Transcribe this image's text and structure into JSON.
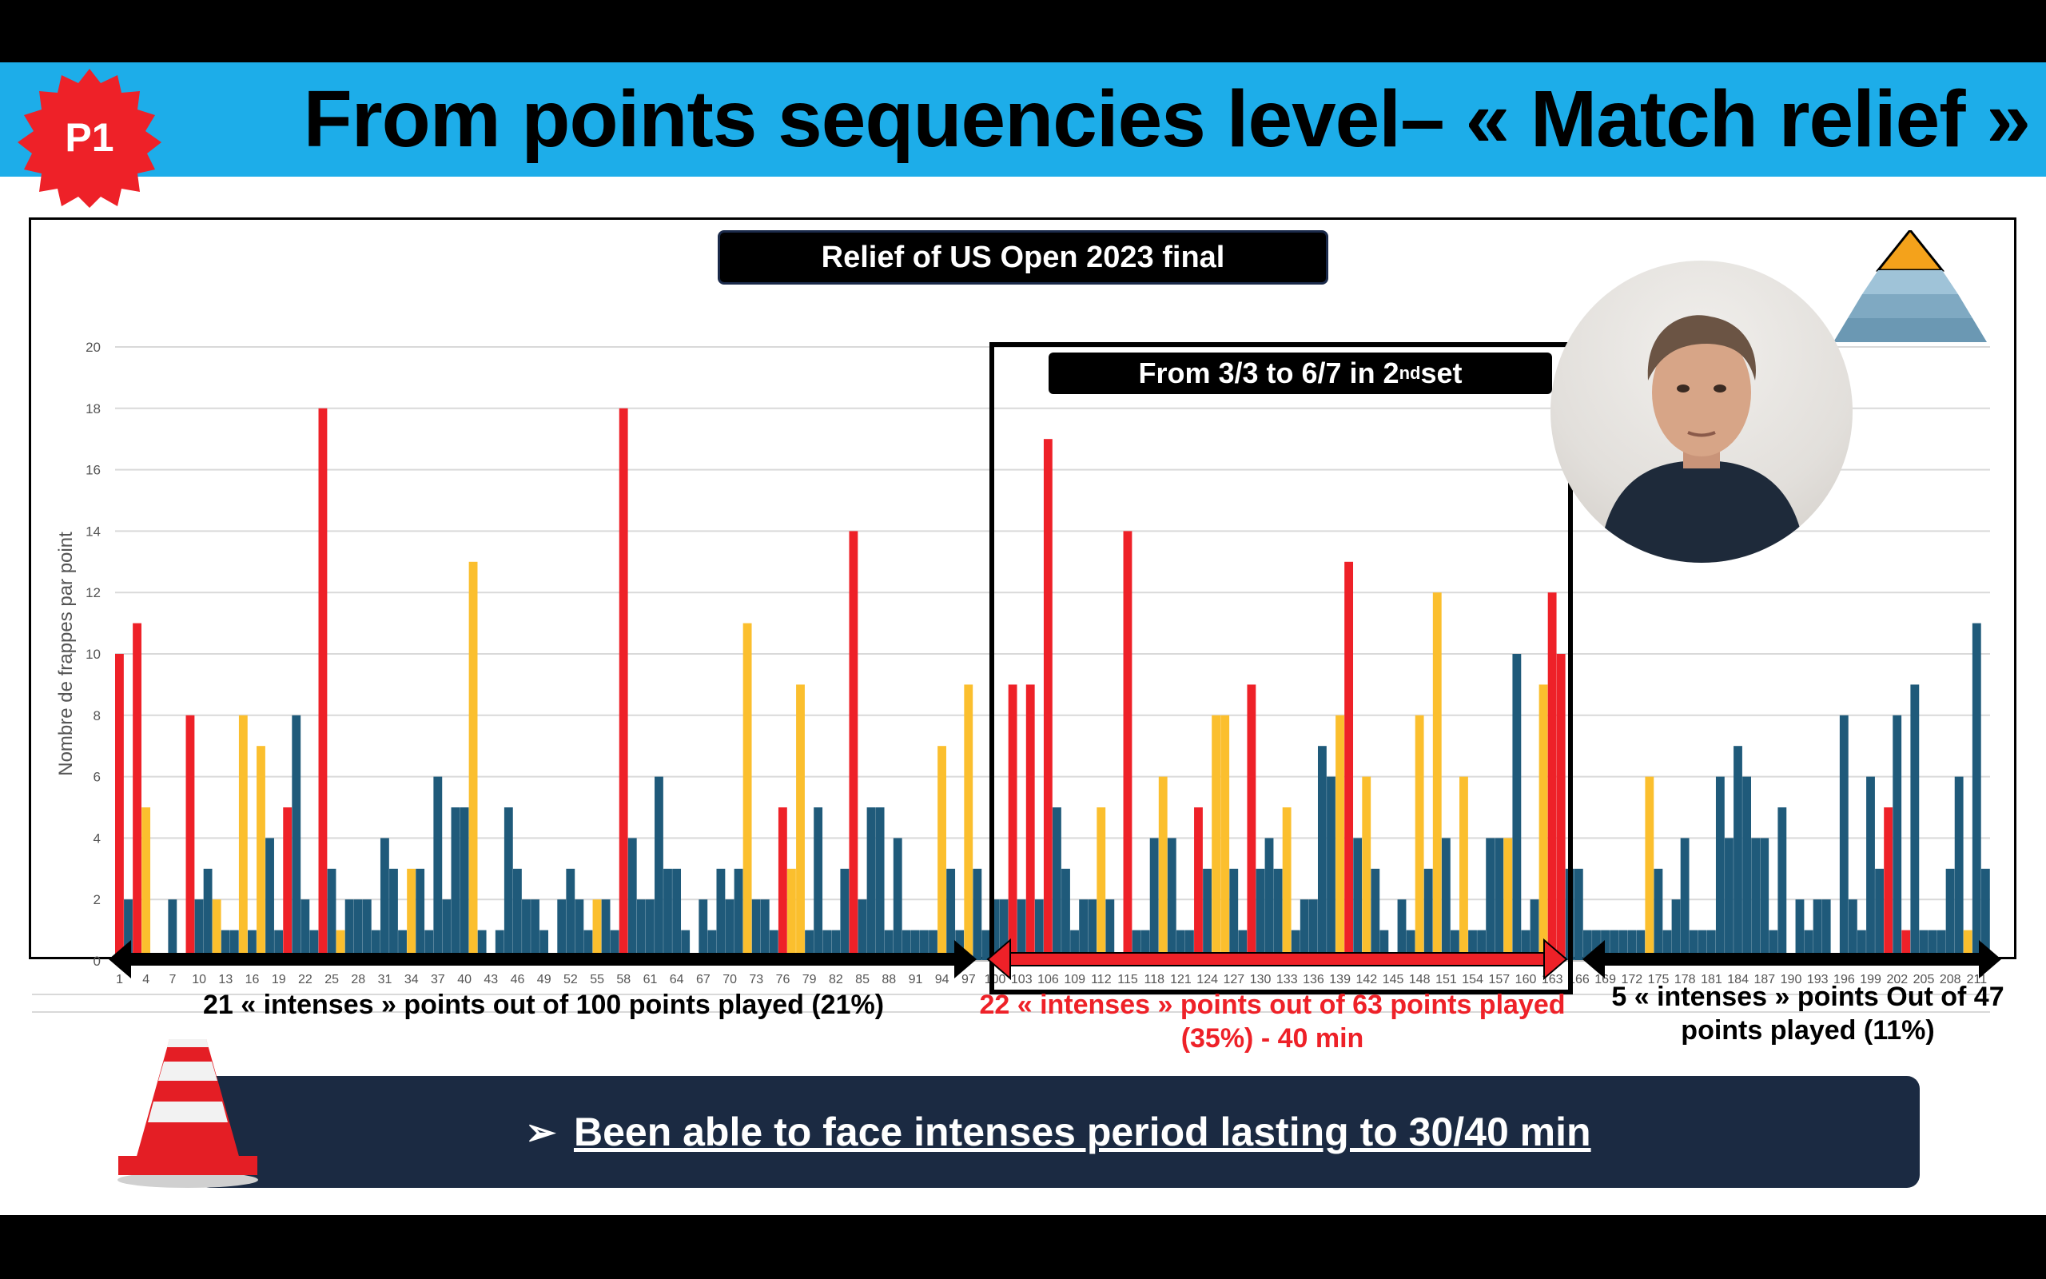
{
  "header": {
    "title": "From points sequencies level– « Match relief »",
    "badge": "P1",
    "colors": {
      "bar": "#1dade9",
      "badge": "#ee2128"
    }
  },
  "chart_title": "Relief of US Open 2023 final",
  "zoom_box": {
    "label_prefix": "From 3/3 to 6/7 in 2",
    "label_sup": "nd",
    "label_suffix": " set"
  },
  "segments": [
    {
      "label": "21 « intenses » points out of 100 points played (21%)",
      "color": "#000000"
    },
    {
      "label": "22 « intenses » points out of 63 points played (35%) - 40 min",
      "color": "#ee2128"
    },
    {
      "label": "5 « intenses » points Out of 47 points played (11%)",
      "color": "#000000"
    }
  ],
  "bottom_message": {
    "arrow": "➢",
    "text": "Been able to face intenses period lasting to 30/40 min"
  },
  "chart_data": {
    "type": "bar",
    "title": "Relief of US Open 2023 final",
    "ylabel": "Nombre de frappes par point",
    "xlabel": "",
    "ylim": [
      0,
      20
    ],
    "yticks": [
      0,
      2,
      4,
      6,
      8,
      10,
      12,
      14,
      16,
      18,
      20
    ],
    "xtick_labels": [
      "1",
      "4",
      "7",
      "10",
      "13",
      "16",
      "19",
      "22",
      "25",
      "28",
      "31",
      "34",
      "37",
      "40",
      "43",
      "46",
      "49",
      "52",
      "55",
      "58",
      "61",
      "64",
      "67",
      "70",
      "73",
      "76",
      "79",
      "82",
      "85",
      "88",
      "91",
      "94",
      "97",
      "100",
      "103",
      "106",
      "109",
      "112",
      "115",
      "118",
      "121",
      "124",
      "127",
      "130",
      "133",
      "136",
      "139",
      "142",
      "145",
      "148",
      "151",
      "154",
      "157",
      "160",
      "163",
      "166",
      "169",
      "172",
      "175",
      "178",
      "181",
      "184",
      "187",
      "190",
      "193",
      "196",
      "199",
      "202",
      "205",
      "208",
      "211"
    ],
    "category_colors": {
      "intense_long": "#ee2128",
      "intense_medium": "#fbbf2e",
      "normal": "#1f5a7a"
    },
    "x": [
      1,
      2,
      3,
      4,
      5,
      6,
      7,
      8,
      9,
      10,
      11,
      12,
      13,
      14,
      15,
      16,
      17,
      18,
      19,
      20,
      21,
      22,
      23,
      24,
      25,
      26,
      27,
      28,
      29,
      30,
      31,
      32,
      33,
      34,
      35,
      36,
      37,
      38,
      39,
      40,
      41,
      42,
      43,
      44,
      45,
      46,
      47,
      48,
      49,
      50,
      51,
      52,
      53,
      54,
      55,
      56,
      57,
      58,
      59,
      60,
      61,
      62,
      63,
      64,
      65,
      66,
      67,
      68,
      69,
      70,
      71,
      72,
      73,
      74,
      75,
      76,
      77,
      78,
      79,
      80,
      81,
      82,
      83,
      84,
      85,
      86,
      87,
      88,
      89,
      90,
      91,
      92,
      93,
      94,
      95,
      96,
      97,
      98,
      99,
      100,
      101,
      102,
      103,
      104,
      105,
      106,
      107,
      108,
      109,
      110,
      111,
      112,
      113,
      114,
      115,
      116,
      117,
      118,
      119,
      120,
      121,
      122,
      123,
      124,
      125,
      126,
      127,
      128,
      129,
      130,
      131,
      132,
      133,
      134,
      135,
      136,
      137,
      138,
      139,
      140,
      141,
      142,
      143,
      144,
      145,
      146,
      147,
      148,
      149,
      150,
      151,
      152,
      153,
      154,
      155,
      156,
      157,
      158,
      159,
      160,
      161,
      162,
      163,
      164,
      165,
      166,
      167,
      168,
      169,
      170,
      171,
      172,
      173,
      174,
      175,
      176,
      177,
      178,
      179,
      180,
      181,
      182,
      183,
      184,
      185,
      186,
      187,
      188,
      189,
      190,
      191,
      192,
      193,
      194,
      195,
      196,
      197,
      198,
      199,
      200,
      201,
      202,
      203,
      204,
      205,
      206,
      207,
      208,
      209,
      210,
      211,
      212
    ],
    "values": [
      10,
      2,
      11,
      5,
      0,
      0,
      2,
      0,
      8,
      2,
      3,
      2,
      1,
      1,
      8,
      1,
      7,
      4,
      1,
      5,
      8,
      2,
      1,
      18,
      3,
      1,
      2,
      2,
      2,
      1,
      4,
      3,
      1,
      3,
      3,
      1,
      6,
      2,
      5,
      5,
      13,
      1,
      0,
      1,
      5,
      3,
      2,
      2,
      1,
      0,
      2,
      3,
      2,
      1,
      2,
      2,
      1,
      18,
      4,
      2,
      2,
      6,
      3,
      3,
      1,
      0,
      2,
      1,
      3,
      2,
      3,
      11,
      2,
      2,
      1,
      5,
      3,
      9,
      1,
      5,
      1,
      1,
      3,
      14,
      2,
      5,
      5,
      1,
      4,
      1,
      1,
      1,
      1,
      7,
      3,
      1,
      9,
      3,
      1,
      2,
      2,
      9,
      2,
      9,
      2,
      17,
      5,
      3,
      1,
      2,
      2,
      5,
      2,
      0,
      14,
      1,
      1,
      4,
      6,
      4,
      1,
      1,
      5,
      3,
      8,
      8,
      3,
      1,
      9,
      3,
      4,
      3,
      5,
      1,
      2,
      2,
      7,
      6,
      8,
      13,
      4,
      6,
      3,
      1,
      0,
      2,
      1,
      8,
      3,
      12,
      4,
      1,
      6,
      1,
      1,
      4,
      4,
      4,
      10,
      1,
      2,
      9,
      12,
      10,
      3,
      3,
      1,
      1,
      1,
      1,
      1,
      1,
      1,
      6,
      3,
      1,
      2,
      4,
      1,
      1,
      1,
      6,
      4,
      7,
      6,
      4,
      4,
      1,
      5,
      0,
      2,
      1,
      2,
      2,
      0,
      8,
      2,
      1,
      6,
      3,
      5,
      8,
      1,
      9,
      1,
      1,
      1,
      3,
      6,
      1,
      11,
      3
    ],
    "intensity": [
      "R",
      "B",
      "R",
      "Y",
      "N",
      "N",
      "B",
      "N",
      "R",
      "B",
      "B",
      "Y",
      "B",
      "B",
      "Y",
      "B",
      "Y",
      "B",
      "B",
      "R",
      "B",
      "B",
      "B",
      "R",
      "B",
      "Y",
      "B",
      "B",
      "B",
      "B",
      "B",
      "B",
      "B",
      "Y",
      "B",
      "B",
      "B",
      "B",
      "B",
      "B",
      "Y",
      "B",
      "N",
      "B",
      "B",
      "B",
      "B",
      "B",
      "B",
      "N",
      "B",
      "B",
      "B",
      "B",
      "Y",
      "B",
      "B",
      "R",
      "B",
      "B",
      "B",
      "B",
      "B",
      "B",
      "B",
      "N",
      "B",
      "B",
      "B",
      "B",
      "B",
      "Y",
      "B",
      "B",
      "B",
      "R",
      "Y",
      "Y",
      "B",
      "B",
      "B",
      "B",
      "B",
      "R",
      "B",
      "B",
      "B",
      "B",
      "B",
      "B",
      "B",
      "B",
      "B",
      "Y",
      "B",
      "B",
      "Y",
      "B",
      "B",
      "B",
      "B",
      "R",
      "B",
      "R",
      "B",
      "R",
      "B",
      "B",
      "B",
      "B",
      "B",
      "Y",
      "B",
      "N",
      "R",
      "B",
      "B",
      "B",
      "Y",
      "B",
      "B",
      "B",
      "R",
      "B",
      "Y",
      "Y",
      "B",
      "B",
      "R",
      "B",
      "B",
      "B",
      "Y",
      "B",
      "B",
      "B",
      "B",
      "B",
      "Y",
      "R",
      "B",
      "Y",
      "B",
      "B",
      "N",
      "B",
      "B",
      "Y",
      "B",
      "Y",
      "B",
      "B",
      "Y",
      "B",
      "B",
      "B",
      "B",
      "Y",
      "B",
      "B",
      "B",
      "Y",
      "R",
      "R",
      "B",
      "B",
      "B",
      "B",
      "B",
      "B",
      "B",
      "B",
      "B",
      "Y",
      "B",
      "B",
      "B",
      "B",
      "B",
      "B",
      "B",
      "B",
      "B",
      "B",
      "B",
      "B",
      "B",
      "B",
      "N",
      "B",
      "B",
      "B",
      "B",
      "N",
      "Y",
      "B",
      "B",
      "B",
      "B",
      "B",
      "R",
      "B",
      "R",
      "B",
      "B",
      "B",
      "B",
      "B",
      "B",
      "Y",
      "B"
    ]
  }
}
